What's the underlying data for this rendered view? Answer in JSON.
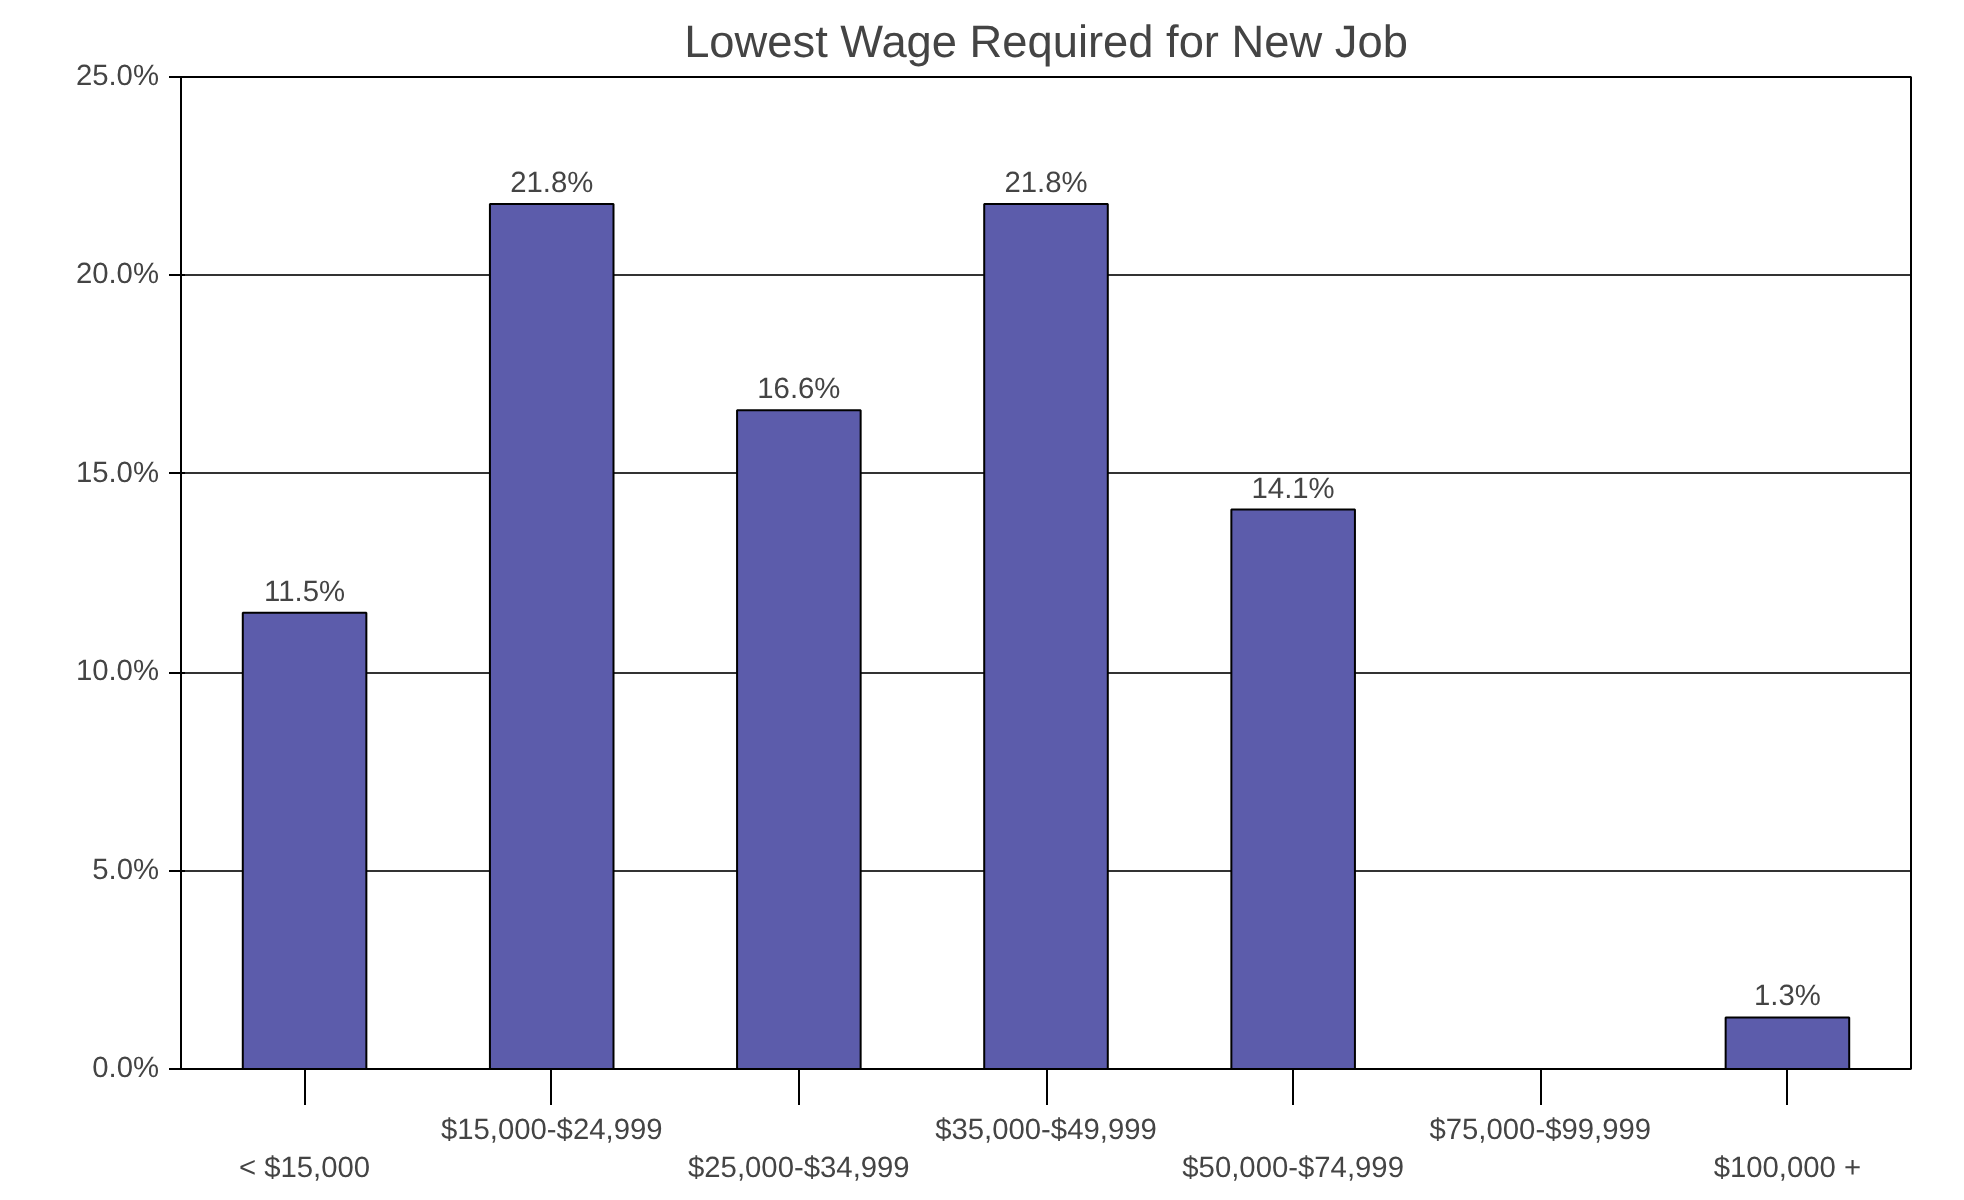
{
  "chart_data": {
    "type": "bar",
    "title": "Lowest Wage Required for New Job",
    "categories": [
      "< $15,000",
      "$15,000-$24,999",
      "$25,000-$34,999",
      "$35,000-$49,999",
      "$50,000-$74,999",
      "$75,000-$99,999",
      "$100,000 +"
    ],
    "values": [
      11.5,
      21.8,
      16.6,
      21.8,
      14.1,
      null,
      1.3
    ],
    "value_labels": [
      "11.5%",
      "21.8%",
      "16.6%",
      "21.8%",
      "14.1%",
      null,
      "1.3%"
    ],
    "color": "#5c5cab",
    "ylim": [
      0,
      25
    ],
    "yticks": [
      {
        "value": 0,
        "label": "0.0%"
      },
      {
        "value": 5,
        "label": "5.0%"
      },
      {
        "value": 10,
        "label": "10.0%"
      },
      {
        "value": 15,
        "label": "15.0%"
      },
      {
        "value": 20,
        "label": "20.0%"
      },
      {
        "value": 25,
        "label": "25.0%"
      }
    ],
    "grid": "y"
  }
}
